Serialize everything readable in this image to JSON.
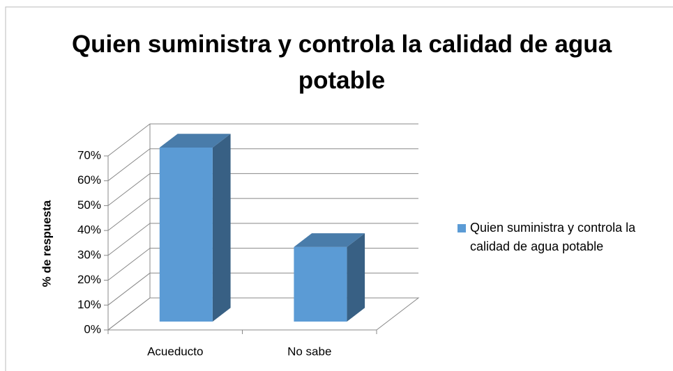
{
  "chart_data": {
    "type": "bar3d",
    "title": "Quien suministra y controla la calidad de agua potable",
    "y_label": "% de respuesta",
    "categories": [
      "Acueducto",
      "No sabe"
    ],
    "series": [
      {
        "name": "Quien suministra y controla la calidad de agua potable",
        "color": "#5b9bd5",
        "values": [
          70,
          30
        ]
      }
    ],
    "ylim": [
      0,
      70
    ],
    "yticks": [
      {
        "value": 0,
        "label": "0%"
      },
      {
        "value": 10,
        "label": "10%"
      },
      {
        "value": 20,
        "label": "20%"
      },
      {
        "value": 30,
        "label": "30%"
      },
      {
        "value": 40,
        "label": "40%"
      },
      {
        "value": 50,
        "label": "50%"
      },
      {
        "value": 60,
        "label": "60%"
      },
      {
        "value": 70,
        "label": "70%"
      }
    ],
    "grid": true,
    "legend": "right"
  }
}
